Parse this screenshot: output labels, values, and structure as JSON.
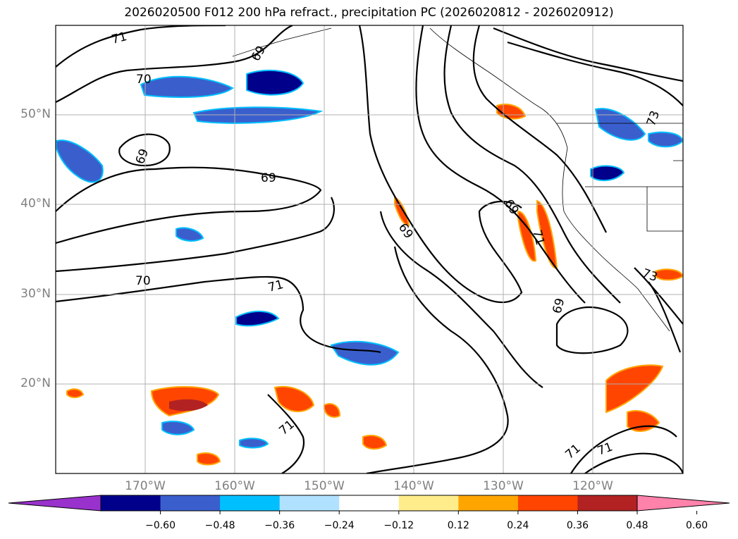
{
  "title": "2026020500 F012 200 hPa refract., precipitation PC (2026020812 - 2026020912)",
  "map": {
    "projection": "equirectangular",
    "lon_range": [
      -180,
      -110
    ],
    "lat_range": [
      10,
      60
    ],
    "gridlines": true,
    "lat_labels": [
      "50°N",
      "40°N",
      "30°N",
      "20°N"
    ],
    "lon_labels": [
      "170°W",
      "160°W",
      "150°W",
      "140°W",
      "130°W",
      "120°W"
    ],
    "contour_labels": [
      "71",
      "69",
      "70",
      "69",
      "69",
      "70",
      "71",
      "69",
      "69",
      "71",
      "69",
      "73",
      "73",
      "71",
      "71",
      "71"
    ]
  },
  "colorbar": {
    "ticks": [
      "−0.60",
      "−0.48",
      "−0.36",
      "−0.24",
      "−0.12",
      "0.12",
      "0.24",
      "0.36",
      "0.48",
      "0.60"
    ],
    "colors": [
      "#9932cc",
      "#00008b",
      "#3a5fcd",
      "#00bfff",
      "#b0e2ff",
      "#ffffff",
      "#ffec8b",
      "#ffa500",
      "#ff4500",
      "#b22222",
      "#ff82ab"
    ],
    "extend": "both"
  },
  "icons": {
    "colorbar_left_arrow": "triangle-left",
    "colorbar_right_arrow": "triangle-right"
  }
}
